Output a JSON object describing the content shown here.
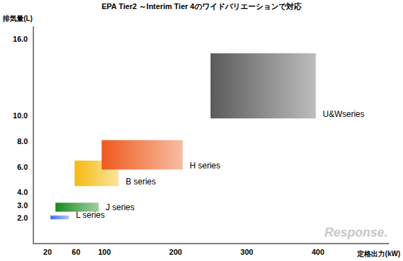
{
  "chart_data": {
    "type": "range_box",
    "title": "EPA Tier2 ～Interim Tier 4のワイドバリエーションで対応",
    "x_label": "定格出力(kW)",
    "y_label": "排気量(L)",
    "xlim": [
      0,
      500
    ],
    "xticks": [
      20,
      60,
      100,
      200,
      300,
      400
    ],
    "ylim": [
      0,
      17
    ],
    "yticks": [
      {
        "value": 2,
        "label": "2.0"
      },
      {
        "value": 3,
        "label": "3.0"
      },
      {
        "value": 4,
        "label": "4.0"
      },
      {
        "value": 6,
        "label": "6.0"
      },
      {
        "value": 8,
        "label": "8.0"
      },
      {
        "value": 10,
        "label": "10.0"
      },
      {
        "value": 16,
        "label": "16.0"
      }
    ],
    "grid": false,
    "series": [
      {
        "name": "L series",
        "color": "#3f6ff0",
        "x": [
          24,
          50
        ],
        "y": [
          1.9,
          2.2
        ]
      },
      {
        "name": "J series",
        "color": "#1a8a1a",
        "x": [
          31,
          92
        ],
        "y": [
          2.5,
          3.2
        ]
      },
      {
        "name": "B series",
        "color": "#f5bb10",
        "x": [
          58,
          120
        ],
        "y": [
          4.5,
          6.5
        ]
      },
      {
        "name": "H series",
        "color": "#ee5a1c",
        "x": [
          96,
          210
        ],
        "y": [
          5.8,
          8.1
        ]
      },
      {
        "name": "U&Wseries",
        "color": "#5a5a5a",
        "x": [
          249,
          397
        ],
        "y": [
          9.8,
          14.9
        ]
      }
    ],
    "annotations": [
      "Response."
    ]
  }
}
